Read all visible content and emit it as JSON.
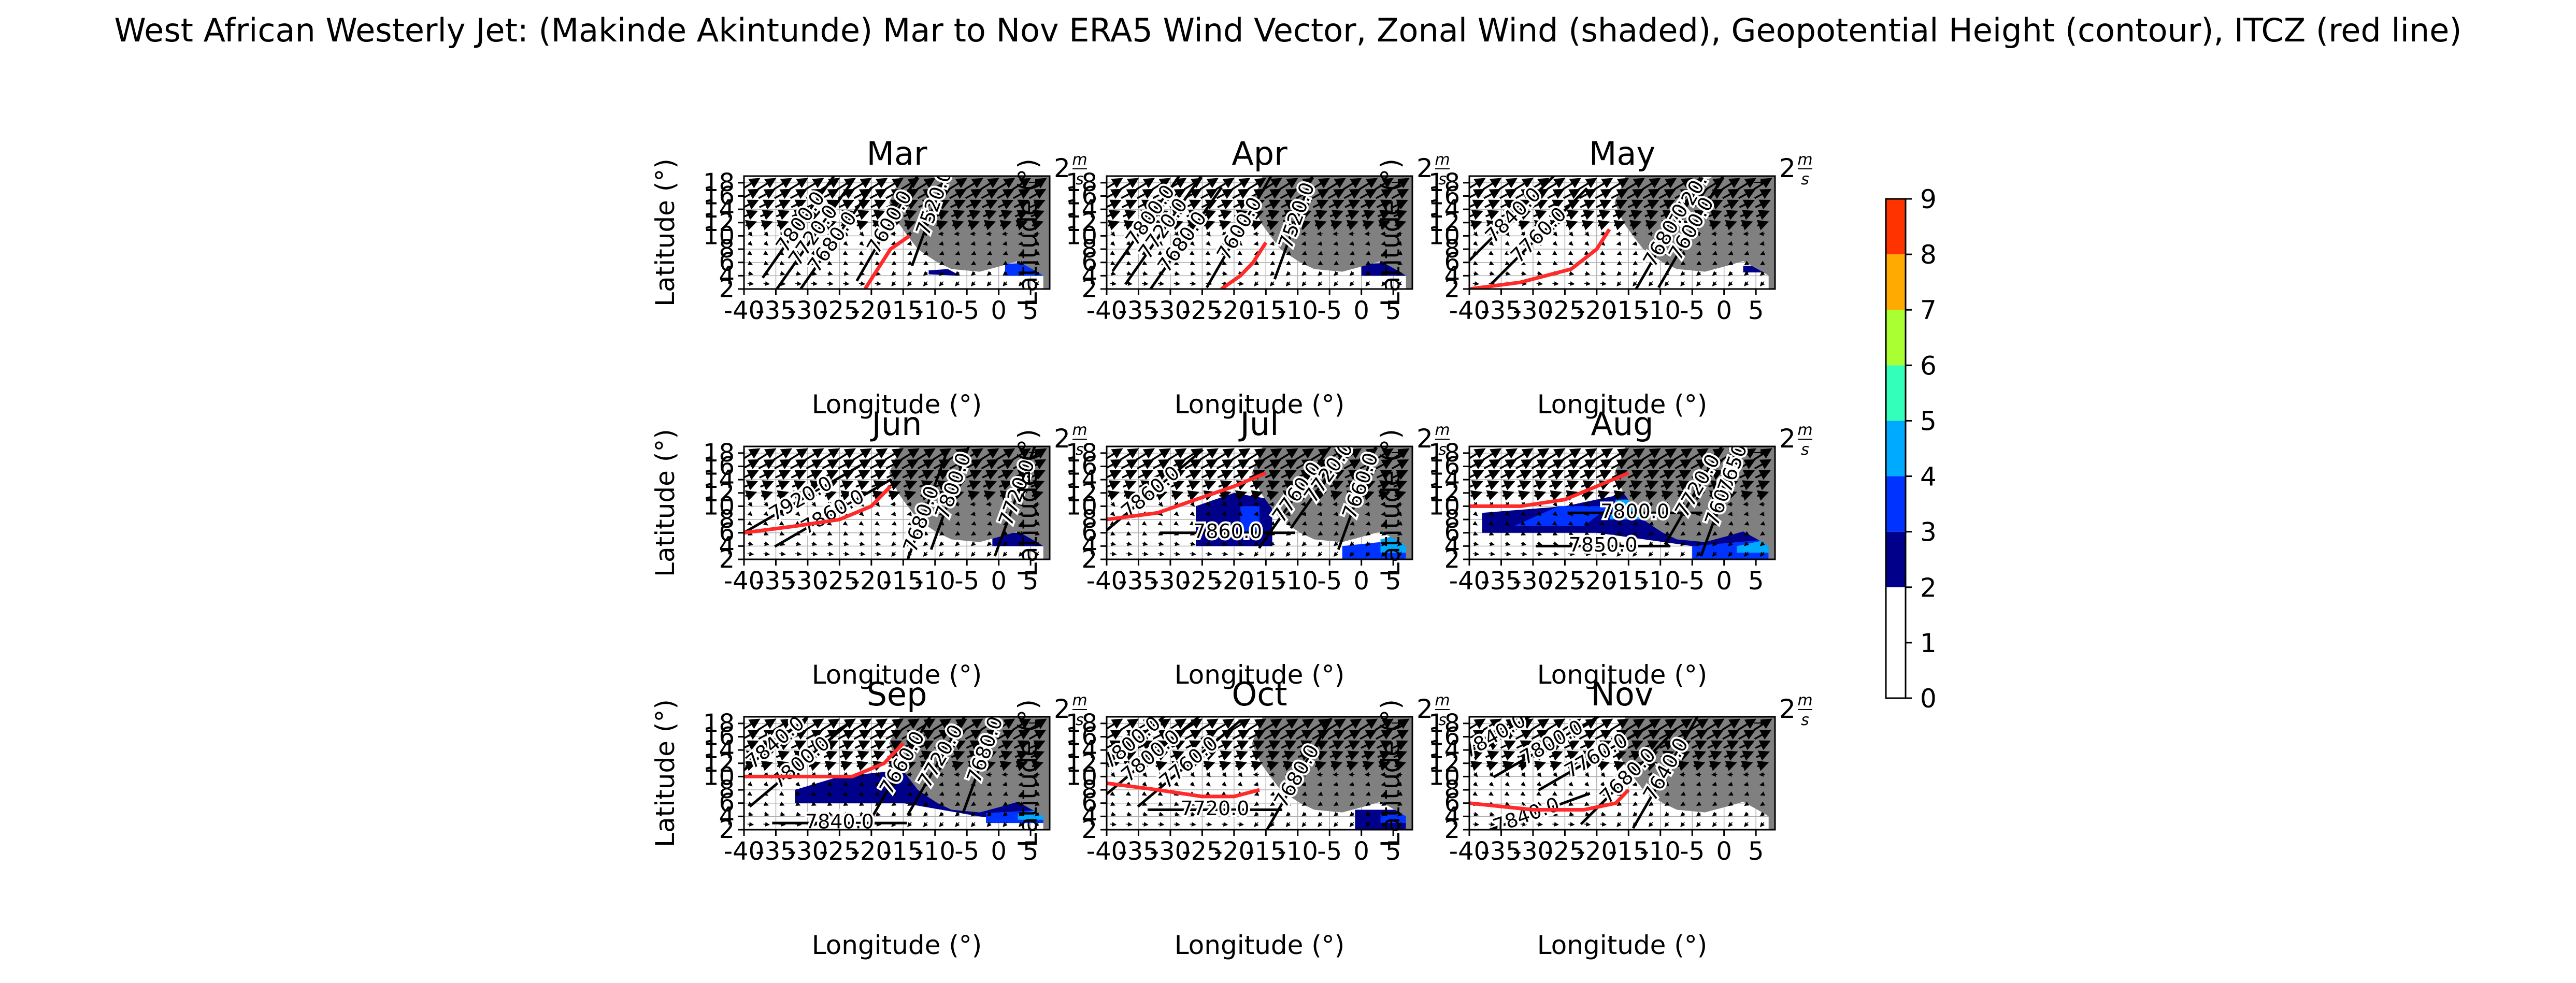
{
  "figure": {
    "title": "West African Westerly Jet: (Makinde Akintunde) Mar to Nov ERA5 Wind Vector, Zonal Wind (shaded), Geopotential Height (contour), ITCZ (red line)"
  },
  "quiver_key_label": "2",
  "quiver_key_unit_num": "m",
  "quiver_key_unit_den": "s",
  "colors": {
    "land": "#808080",
    "itcz": "#ff2a2a",
    "contour": "#000000",
    "grid": "#b0b0b0"
  },
  "chart_data": {
    "type": "heatmap",
    "xlabel": "Longitude (°)",
    "ylabel": "Latitude (°)",
    "xlim": [
      -40,
      8
    ],
    "ylim": [
      2,
      19
    ],
    "xticks": [
      -40,
      -35,
      -30,
      -25,
      -20,
      -15,
      -10,
      -5,
      0,
      5
    ],
    "yticks": [
      2,
      4,
      6,
      8,
      10,
      12,
      14,
      16,
      18
    ],
    "grid": true,
    "colorbar": {
      "min": 0,
      "max": 9,
      "ticks": [
        0,
        1,
        2,
        3,
        4,
        5,
        6,
        7,
        8,
        9
      ],
      "levels": [
        {
          "from": 0,
          "to": 1,
          "color": "#ffffff"
        },
        {
          "from": 1,
          "to": 2,
          "color": "#ffffff"
        },
        {
          "from": 2,
          "to": 3,
          "color": "#00008b"
        },
        {
          "from": 3,
          "to": 4,
          "color": "#0033ff"
        },
        {
          "from": 4,
          "to": 5,
          "color": "#00aaff"
        },
        {
          "from": 5,
          "to": 6,
          "color": "#33ffbb"
        },
        {
          "from": 6,
          "to": 7,
          "color": "#aaff33"
        },
        {
          "from": 7,
          "to": 8,
          "color": "#ffaa00"
        },
        {
          "from": 8,
          "to": 9,
          "color": "#ff3300"
        }
      ]
    },
    "panels": [
      {
        "title": "Mar",
        "itcz": [
          [
            -21,
            2
          ],
          [
            -19,
            5
          ],
          [
            -17,
            8
          ],
          [
            -14,
            10
          ]
        ],
        "jet_regions": [
          {
            "level": 2.5,
            "points": [
              [
                -11,
                4.2
              ],
              [
                -6,
                4
              ],
              [
                -8,
                5
              ],
              [
                -11,
                4.8
              ]
            ]
          },
          {
            "level": 3.5,
            "points": [
              [
                1,
                4
              ],
              [
                7,
                4
              ],
              [
                7,
                6
              ],
              [
                1,
                5.8
              ]
            ]
          }
        ],
        "contour_labels": [
          {
            "text": "7800.0",
            "x": -31,
            "y": 12,
            "angle": -55
          },
          {
            "text": "7720.0",
            "x": -29,
            "y": 10,
            "angle": -55
          },
          {
            "text": "7680.0",
            "x": -26,
            "y": 9,
            "angle": -55
          },
          {
            "text": "7600.0",
            "x": -17,
            "y": 12,
            "angle": -60
          },
          {
            "text": "7520.0",
            "x": -10,
            "y": 15,
            "angle": -70
          }
        ]
      },
      {
        "title": "Apr",
        "itcz": [
          [
            -22,
            2
          ],
          [
            -19,
            4
          ],
          [
            -17,
            6
          ],
          [
            -15,
            9
          ]
        ],
        "jet_regions": [
          {
            "level": 2.5,
            "points": [
              [
                0,
                4
              ],
              [
                7,
                4
              ],
              [
                7,
                6
              ],
              [
                0,
                5.8
              ]
            ]
          }
        ],
        "contour_labels": [
          {
            "text": "7800.0",
            "x": -33,
            "y": 13,
            "angle": -55
          },
          {
            "text": "7720.0",
            "x": -31,
            "y": 11,
            "angle": -55
          },
          {
            "text": "7680.0",
            "x": -28,
            "y": 9,
            "angle": -55
          },
          {
            "text": "7600.0",
            "x": -19,
            "y": 11,
            "angle": -60
          },
          {
            "text": "7520.0",
            "x": -10,
            "y": 13,
            "angle": -70
          }
        ]
      },
      {
        "title": "May",
        "itcz": [
          [
            -40,
            2
          ],
          [
            -32,
            3
          ],
          [
            -24,
            5
          ],
          [
            -20,
            8
          ],
          [
            -18,
            11
          ]
        ],
        "jet_regions": [
          {
            "level": 2.5,
            "points": [
              [
                3,
                4.5
              ],
              [
                7,
                4.5
              ],
              [
                7,
                5.5
              ],
              [
                3,
                5.5
              ]
            ]
          }
        ],
        "contour_labels": [
          {
            "text": "7840.0",
            "x": -33,
            "y": 13,
            "angle": -45
          },
          {
            "text": "7760.0",
            "x": -29,
            "y": 10,
            "angle": -45
          },
          {
            "text": "7720.0",
            "x": -5,
            "y": 16,
            "angle": -60
          },
          {
            "text": "7600.0",
            "x": -5,
            "y": 11,
            "angle": -60
          },
          {
            "text": "7680.0",
            "x": -9,
            "y": 10,
            "angle": -60
          }
        ]
      },
      {
        "title": "Jun",
        "itcz": [
          [
            -40,
            6
          ],
          [
            -32,
            7
          ],
          [
            -25,
            8
          ],
          [
            -20,
            10
          ],
          [
            -17,
            13
          ]
        ],
        "jet_regions": [
          {
            "level": 2.5,
            "points": [
              [
                -1,
                4
              ],
              [
                7,
                4
              ],
              [
                7,
                6
              ],
              [
                -1,
                6
              ]
            ]
          }
        ],
        "contour_labels": [
          {
            "text": "7920.0",
            "x": -31,
            "y": 11,
            "angle": -30
          },
          {
            "text": "7860.0",
            "x": -26,
            "y": 9,
            "angle": -30
          },
          {
            "text": "7800.0",
            "x": -7,
            "y": 13,
            "angle": -70
          },
          {
            "text": "7720.0",
            "x": 3,
            "y": 12,
            "angle": -70
          },
          {
            "text": "7680.0",
            "x": -12,
            "y": 8,
            "angle": -70
          }
        ]
      },
      {
        "title": "Jul",
        "itcz": [
          [
            -40,
            8
          ],
          [
            -32,
            9
          ],
          [
            -26,
            11
          ],
          [
            -20,
            13
          ],
          [
            -15,
            15
          ]
        ],
        "jet_regions": [
          {
            "level": 2.5,
            "points": [
              [
                -26,
                4
              ],
              [
                -14,
                4
              ],
              [
                -14,
                11
              ],
              [
                -20,
                12
              ],
              [
                -26,
                10
              ]
            ]
          },
          {
            "level": 3.5,
            "points": [
              [
                -19,
                6
              ],
              [
                -16,
                6
              ],
              [
                -16,
                10
              ],
              [
                -19,
                10
              ]
            ]
          },
          {
            "level": 3.5,
            "points": [
              [
                -3,
                2
              ],
              [
                7,
                2
              ],
              [
                7,
                5
              ],
              [
                -3,
                4
              ]
            ]
          },
          {
            "level": 4.5,
            "points": [
              [
                3,
                3
              ],
              [
                7,
                3
              ],
              [
                7,
                6
              ],
              [
                3,
                5
              ]
            ]
          }
        ],
        "contour_labels": [
          {
            "text": "7860.0",
            "x": -33,
            "y": 12,
            "angle": -40
          },
          {
            "text": "7860.0",
            "x": -21,
            "y": 6,
            "angle": 0
          },
          {
            "text": "7760.0",
            "x": -10,
            "y": 12,
            "angle": -55
          },
          {
            "text": "7720.0",
            "x": -5,
            "y": 15,
            "angle": -55
          },
          {
            "text": "7660.0",
            "x": 0,
            "y": 13,
            "angle": -70
          }
        ]
      },
      {
        "title": "Aug",
        "itcz": [
          [
            -40,
            10
          ],
          [
            -32,
            10
          ],
          [
            -25,
            11
          ],
          [
            -20,
            13
          ],
          [
            -15,
            15
          ]
        ],
        "jet_regions": [
          {
            "level": 2.5,
            "points": [
              [
                -38,
                6
              ],
              [
                -20,
                6
              ],
              [
                -5,
                4
              ],
              [
                7,
                3
              ],
              [
                7,
                6
              ],
              [
                -5,
                7
              ],
              [
                -15,
                12
              ],
              [
                -25,
                10
              ],
              [
                -38,
                9
              ]
            ]
          },
          {
            "level": 3.5,
            "points": [
              [
                -33,
                7
              ],
              [
                -22,
                7
              ],
              [
                -18,
                10
              ],
              [
                -26,
                10
              ]
            ]
          },
          {
            "level": 4.5,
            "points": [
              [
                -18,
                8
              ],
              [
                -12,
                8
              ],
              [
                -13,
                11
              ],
              [
                -17,
                11
              ]
            ]
          },
          {
            "level": 3.5,
            "points": [
              [
                -5,
                2
              ],
              [
                7,
                2
              ],
              [
                7,
                5
              ],
              [
                -5,
                4
              ]
            ]
          },
          {
            "level": 4.5,
            "points": [
              [
                2,
                3
              ],
              [
                7,
                3
              ],
              [
                7,
                5
              ],
              [
                2,
                4
              ]
            ]
          }
        ],
        "contour_labels": [
          {
            "text": "7800.0",
            "x": -14,
            "y": 9,
            "angle": 0
          },
          {
            "text": "7850.0",
            "x": -19,
            "y": 4,
            "angle": 0
          },
          {
            "text": "7720.0",
            "x": -4,
            "y": 13,
            "angle": -60
          },
          {
            "text": "7600.0",
            "x": 0,
            "y": 12,
            "angle": -70
          },
          {
            "text": "7650.0",
            "x": 2,
            "y": 17,
            "angle": -70
          }
        ]
      },
      {
        "title": "Sep",
        "itcz": [
          [
            -40,
            10
          ],
          [
            -30,
            10
          ],
          [
            -23,
            10
          ],
          [
            -18,
            12
          ],
          [
            -15,
            15
          ]
        ],
        "jet_regions": [
          {
            "level": 2.5,
            "points": [
              [
                -32,
                6
              ],
              [
                -15,
                6
              ],
              [
                -3,
                4
              ],
              [
                7,
                3
              ],
              [
                7,
                6
              ],
              [
                -5,
                7
              ],
              [
                -15,
                11
              ],
              [
                -25,
                10
              ],
              [
                -32,
                8
              ]
            ]
          },
          {
            "level": 3.5,
            "points": [
              [
                -2,
                3
              ],
              [
                7,
                3
              ],
              [
                7,
                5
              ],
              [
                -2,
                4.5
              ]
            ]
          },
          {
            "level": 4.5,
            "points": [
              [
                3,
                3.5
              ],
              [
                7,
                3.5
              ],
              [
                7,
                5
              ],
              [
                3,
                4.5
              ]
            ]
          }
        ],
        "contour_labels": [
          {
            "text": "7840.0",
            "x": -35,
            "y": 15,
            "angle": -40
          },
          {
            "text": "7800.0",
            "x": -31,
            "y": 12,
            "angle": -40
          },
          {
            "text": "7720.0",
            "x": -9,
            "y": 13,
            "angle": -60
          },
          {
            "text": "7660.0",
            "x": -15,
            "y": 12,
            "angle": -60
          },
          {
            "text": "7680.0",
            "x": -2,
            "y": 14,
            "angle": -70
          },
          {
            "text": "7840.0",
            "x": -25,
            "y": 3,
            "angle": 0
          }
        ]
      },
      {
        "title": "Oct",
        "itcz": [
          [
            -40,
            9
          ],
          [
            -32,
            8
          ],
          [
            -25,
            7
          ],
          [
            -20,
            7
          ],
          [
            -16,
            8
          ]
        ],
        "jet_regions": [
          {
            "level": 2.5,
            "points": [
              [
                -1,
                2
              ],
              [
                7,
                2
              ],
              [
                7,
                5
              ],
              [
                -1,
                5
              ]
            ]
          },
          {
            "level": 3.5,
            "points": [
              [
                3,
                3
              ],
              [
                7,
                3
              ],
              [
                7,
                4.5
              ],
              [
                3,
                4.5
              ]
            ]
          }
        ],
        "contour_labels": [
          {
            "text": "7800.0",
            "x": -36,
            "y": 15,
            "angle": -40
          },
          {
            "text": "7800.0",
            "x": -33,
            "y": 13,
            "angle": -40
          },
          {
            "text": "7760.0",
            "x": -27,
            "y": 12,
            "angle": -40
          },
          {
            "text": "7680.0",
            "x": -10,
            "y": 10,
            "angle": -60
          },
          {
            "text": "7720.0",
            "x": -23,
            "y": 5,
            "angle": 0
          }
        ]
      },
      {
        "title": "Nov",
        "itcz": [
          [
            -40,
            6
          ],
          [
            -30,
            5
          ],
          [
            -22,
            5
          ],
          [
            -17,
            6
          ],
          [
            -15,
            8
          ]
        ],
        "jet_regions": [],
        "contour_labels": [
          {
            "text": "7840.0",
            "x": -36,
            "y": 16,
            "angle": -30
          },
          {
            "text": "7800.0",
            "x": -27,
            "y": 15,
            "angle": -30
          },
          {
            "text": "7760.0",
            "x": -20,
            "y": 13,
            "angle": -30
          },
          {
            "text": "7680.0",
            "x": -15,
            "y": 10,
            "angle": -45
          },
          {
            "text": "7640.0",
            "x": -9,
            "y": 11,
            "angle": -60
          },
          {
            "text": "7840.0",
            "x": -31,
            "y": 4,
            "angle": -20
          }
        ]
      }
    ]
  }
}
